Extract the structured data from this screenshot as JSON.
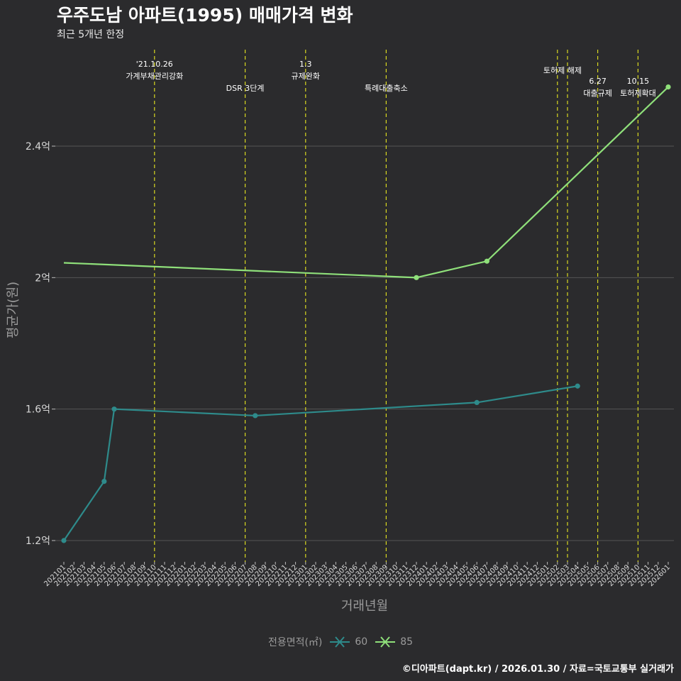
{
  "title": "우주도남 아파트(1995) 매매가격 변화",
  "subtitle": "최근 5개년 한정",
  "caption": "©디아파트(dapt.kr) / 2026.01.30 / 자료=국토교통부 실거래가",
  "legend": {
    "title": "전용면적(㎡)",
    "items": [
      {
        "label": "60",
        "color": "#2e8b8b"
      },
      {
        "label": "85",
        "color": "#8fe07a"
      }
    ]
  },
  "colors": {
    "background": "#2b2b2d",
    "grid": "#555555",
    "event_line": "#d8d820"
  },
  "chart_data": {
    "type": "line",
    "xlabel": "거래년월",
    "ylabel": "평균가(원)",
    "categories": [
      "202101",
      "202102",
      "202103",
      "202104",
      "202105",
      "202106",
      "202107",
      "202108",
      "202109",
      "202110",
      "202111",
      "202112",
      "202201",
      "202202",
      "202203",
      "202204",
      "202205",
      "202206",
      "202207",
      "202208",
      "202209",
      "202210",
      "202211",
      "202212",
      "202301",
      "202302",
      "202303",
      "202304",
      "202305",
      "202306",
      "202307",
      "202308",
      "202309",
      "202310",
      "202311",
      "202312",
      "202401",
      "202402",
      "202403",
      "202404",
      "202405",
      "202406",
      "202407",
      "202408",
      "202409",
      "202410",
      "202411",
      "202412",
      "202501",
      "202502",
      "202503",
      "202504",
      "202505",
      "202506",
      "202507",
      "202508",
      "202509",
      "202510",
      "202511",
      "202512",
      "202601"
    ],
    "y_ticks": [
      {
        "value": 1.2,
        "label": "1.2억"
      },
      {
        "value": 1.6,
        "label": "1.6억"
      },
      {
        "value": 2.0,
        "label": "2억"
      },
      {
        "value": 2.4,
        "label": "2.4억"
      }
    ],
    "ylim": [
      1.15,
      2.65
    ],
    "series": [
      {
        "name": "60",
        "points": [
          [
            "202101",
            1.2
          ],
          [
            "202105",
            1.38
          ],
          [
            "202106",
            1.6
          ],
          [
            "202208",
            1.58
          ],
          [
            "202406",
            1.62
          ],
          [
            "202504",
            1.67
          ]
        ]
      },
      {
        "name": "85",
        "start_category": "202101",
        "start_value": 2.045,
        "points": [
          [
            "202312",
            2.0
          ],
          [
            "202407",
            2.05
          ],
          [
            "202601",
            2.58
          ]
        ]
      }
    ],
    "events": [
      {
        "category": "202110",
        "lines": [
          "'21.10.26",
          "가계부채관리강화"
        ],
        "tier": "upper"
      },
      {
        "category": "202207",
        "lines": [
          "DSR 3단계"
        ],
        "tier": "lower"
      },
      {
        "category": "202301",
        "lines": [
          "1.3",
          "규제완화"
        ],
        "tier": "upper"
      },
      {
        "category": "202309",
        "lines": [
          "특례대출축소"
        ],
        "tier": "lower"
      },
      {
        "category": "202502",
        "lines": [
          "토허제 해제"
        ],
        "tier": "upper",
        "anchor": "mid"
      },
      {
        "category": "202503",
        "lines": [],
        "tier": "none"
      },
      {
        "category": "202506",
        "lines": [
          "6.27",
          "대출규제"
        ],
        "tier": "mid"
      },
      {
        "category": "202510",
        "lines": [
          "10.15",
          "토허제확대"
        ],
        "tier": "mid"
      }
    ]
  }
}
